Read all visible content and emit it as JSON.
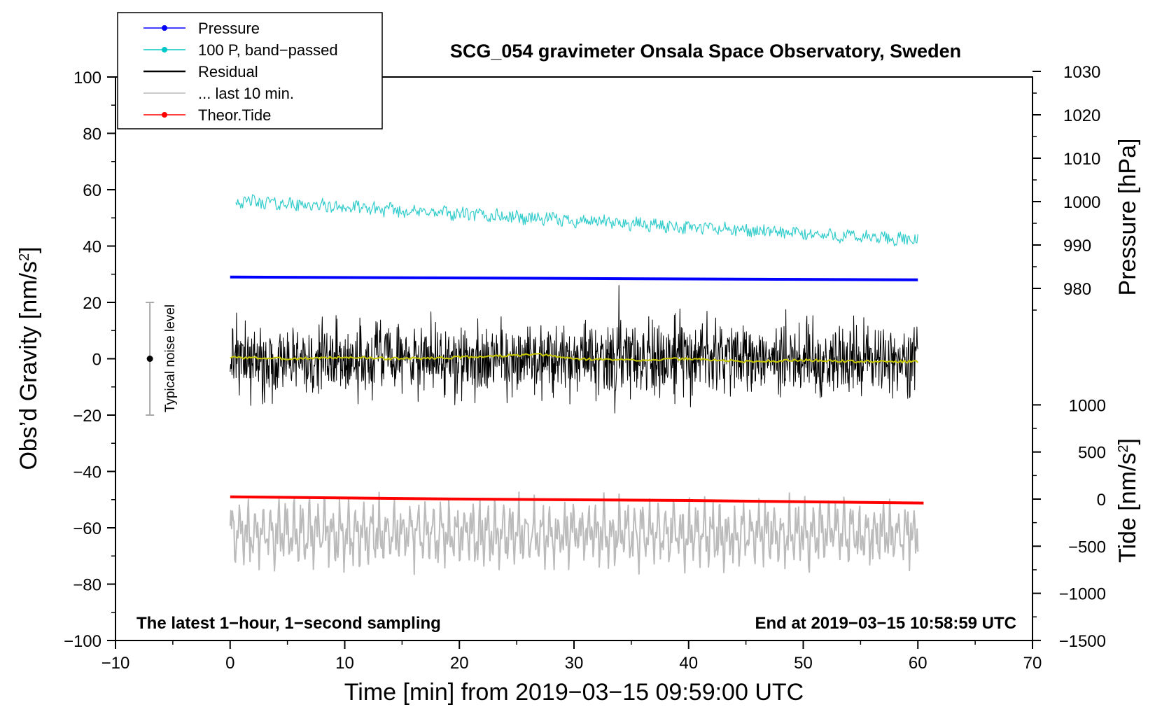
{
  "chart_data": {
    "type": "line",
    "title": "SCG_054 gravimeter Onsala Space Observatory, Sweden",
    "xlabel": "Time [min] from 2019−03−15 09:59:00 UTC",
    "ylabel_left": "Obs'd Gravity [nm/s²]",
    "ylabel_right_top": "Pressure [hPa]",
    "ylabel_right_bottom": "Tide [nm/s²]",
    "xlim": [
      -10,
      70
    ],
    "ylim_left": [
      -100,
      100
    ],
    "pressure_axis_range": [
      980,
      1030
    ],
    "tide_axis_range": [
      -1500,
      1000
    ],
    "x_ticks": [
      "−10",
      "0",
      "10",
      "20",
      "30",
      "40",
      "50",
      "60",
      "70"
    ],
    "y_ticks_left": [
      "−100",
      "−80",
      "−60",
      "−40",
      "−20",
      "0",
      "20",
      "40",
      "60",
      "80",
      "100"
    ],
    "y_ticks_pressure": [
      "980",
      "990",
      "1000",
      "1010",
      "1020",
      "1030"
    ],
    "y_ticks_tide": [
      "−1500",
      "−1000",
      "−500",
      "0",
      "500",
      "1000"
    ],
    "legend": {
      "position": "top-left",
      "entries": [
        {
          "label": "Pressure",
          "color": "#0000ff",
          "marker": true
        },
        {
          "label": "100 P, band−passed",
          "color": "#00c8c8",
          "marker": true
        },
        {
          "label": "Residual",
          "color": "#000000",
          "marker": false
        },
        {
          "label": "... last 10 min.",
          "color": "#bbbbbb",
          "marker": false
        },
        {
          "label": "Theor.Tide",
          "color": "#ff0000",
          "marker": true
        }
      ]
    },
    "annotations": {
      "left": "The latest 1−hour, 1−second sampling",
      "right": "End at 2019−03−15 10:58:59 UTC",
      "noise": "Typical noise level"
    },
    "noise_bar": {
      "x": -7,
      "center": 0,
      "low": -20,
      "high": 20
    },
    "series": [
      {
        "name": "Pressure",
        "color": "#0000ff",
        "x": [
          0,
          60
        ],
        "values": [
          29,
          28
        ]
      },
      {
        "name": "100 P, band−passed",
        "color": "#33cccc",
        "x": [
          0.5,
          60
        ],
        "values": [
          56,
          42
        ],
        "noise_amp": 2.2
      },
      {
        "name": "Residual",
        "color": "#000000",
        "x": [
          0,
          60
        ],
        "values": [
          0,
          0
        ],
        "noise_amp": 13
      },
      {
        "name": "Residual (smoothed)",
        "color": "#c8c800",
        "x": [
          0,
          5,
          10,
          15,
          20,
          27,
          30,
          35,
          40,
          45,
          50,
          55,
          60
        ],
        "values": [
          0.5,
          0,
          0.5,
          0,
          0.5,
          1.5,
          0,
          -0.5,
          0,
          -1,
          -0.5,
          -1,
          -1
        ]
      },
      {
        "name": "... last 10 min.",
        "color": "#bbbbbb",
        "x": [
          0,
          60
        ],
        "values": [
          -62,
          -62
        ],
        "noise_amp": 10
      },
      {
        "name": "Theor.Tide",
        "color": "#ff0000",
        "x": [
          0,
          20,
          40,
          60.5
        ],
        "values": [
          -49,
          -49.8,
          -50.3,
          -51.2
        ]
      }
    ]
  }
}
